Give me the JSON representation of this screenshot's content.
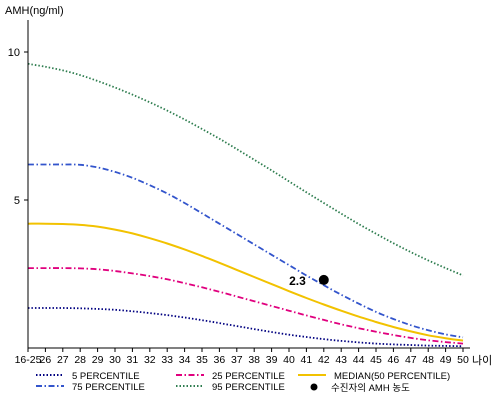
{
  "chart_data": {
    "type": "line",
    "ylabel": "AMH(ng/ml)",
    "xlabel": "나이",
    "ylim": [
      0,
      11
    ],
    "yticks": [
      5,
      10
    ],
    "categories": [
      "16-25",
      "26",
      "27",
      "28",
      "29",
      "30",
      "31",
      "32",
      "33",
      "34",
      "35",
      "36",
      "37",
      "38",
      "39",
      "40",
      "41",
      "42",
      "43",
      "44",
      "45",
      "46",
      "47",
      "48",
      "49",
      "50"
    ],
    "grid": false,
    "legend_position": "bottom",
    "series": [
      {
        "name": "5 PERCENTILE",
        "color": "#000080",
        "style": "dotted",
        "values": [
          1.35,
          1.35,
          1.35,
          1.34,
          1.32,
          1.29,
          1.24,
          1.18,
          1.11,
          1.03,
          0.94,
          0.84,
          0.74,
          0.64,
          0.54,
          0.45,
          0.37,
          0.3,
          0.24,
          0.19,
          0.15,
          0.12,
          0.1,
          0.08,
          0.07,
          0.06
        ]
      },
      {
        "name": "25 PERCENTILE",
        "color": "#e0007e",
        "style": "dashdot",
        "values": [
          2.7,
          2.7,
          2.7,
          2.69,
          2.66,
          2.6,
          2.52,
          2.43,
          2.32,
          2.19,
          2.05,
          1.9,
          1.74,
          1.58,
          1.42,
          1.26,
          1.1,
          0.95,
          0.8,
          0.67,
          0.55,
          0.44,
          0.34,
          0.26,
          0.2,
          0.15
        ]
      },
      {
        "name": "MEDIAN(50 PERCENTILE)",
        "color": "#f2c200",
        "style": "solid",
        "values": [
          4.2,
          4.2,
          4.19,
          4.16,
          4.1,
          4.0,
          3.87,
          3.71,
          3.53,
          3.33,
          3.11,
          2.88,
          2.64,
          2.4,
          2.16,
          1.92,
          1.69,
          1.47,
          1.26,
          1.06,
          0.88,
          0.71,
          0.56,
          0.43,
          0.33,
          0.25
        ]
      },
      {
        "name": "75 PERCENTILE",
        "color": "#3355cc",
        "style": "dashdot",
        "values": [
          6.2,
          6.2,
          6.2,
          6.19,
          6.1,
          5.95,
          5.75,
          5.5,
          5.22,
          4.9,
          4.55,
          4.2,
          3.85,
          3.5,
          3.15,
          2.8,
          2.45,
          2.12,
          1.8,
          1.5,
          1.22,
          0.98,
          0.77,
          0.6,
          0.46,
          0.36
        ]
      },
      {
        "name": "95 PERCENTILE",
        "color": "#2e7d4f",
        "style": "dotted",
        "values": [
          9.6,
          9.5,
          9.38,
          9.22,
          9.02,
          8.8,
          8.56,
          8.3,
          8.02,
          7.72,
          7.4,
          7.07,
          6.72,
          6.36,
          6.0,
          5.63,
          5.26,
          4.9,
          4.54,
          4.19,
          3.86,
          3.54,
          3.24,
          2.96,
          2.7,
          2.45
        ]
      }
    ],
    "marker": {
      "label": "수진자의 AMH 농도",
      "x": "42",
      "y": 2.3,
      "text": "2.3"
    }
  }
}
